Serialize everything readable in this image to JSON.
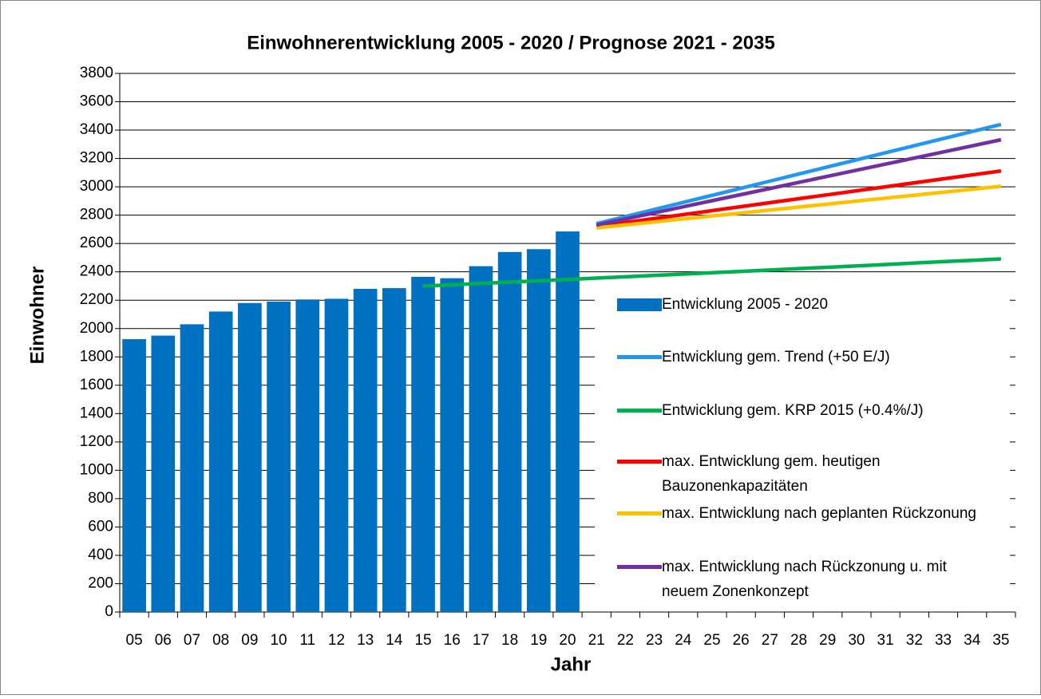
{
  "chart_data": {
    "type": "bar",
    "title": "Einwohnerentwicklung 2005 - 2020 / Prognose 2021 - 2035",
    "x_label": "Jahr",
    "y_label": "Einwohner",
    "categories": [
      "05",
      "06",
      "07",
      "08",
      "09",
      "10",
      "11",
      "12",
      "13",
      "14",
      "15",
      "16",
      "17",
      "18",
      "19",
      "20",
      "21",
      "22",
      "23",
      "24",
      "25",
      "26",
      "27",
      "28",
      "29",
      "30",
      "31",
      "32",
      "33",
      "34",
      "35"
    ],
    "ylim": [
      0,
      3800
    ],
    "yticks": [
      0,
      200,
      400,
      600,
      800,
      1000,
      1200,
      1400,
      1600,
      1800,
      2000,
      2200,
      2400,
      2600,
      2800,
      3000,
      3200,
      3400,
      3600,
      3800
    ],
    "grid": true,
    "series": [
      {
        "name": "Entwicklung 2005 - 2020",
        "type": "bar",
        "color": "#0070c0",
        "values": [
          1925,
          1950,
          2030,
          2120,
          2180,
          2190,
          2205,
          2210,
          2280,
          2285,
          2365,
          2355,
          2440,
          2540,
          2560,
          2685,
          null,
          null,
          null,
          null,
          null,
          null,
          null,
          null,
          null,
          null,
          null,
          null,
          null,
          null,
          null
        ]
      },
      {
        "name": "Entwicklung gem. Trend (+50 E/J)",
        "type": "line",
        "color": "#2196f3",
        "values": [
          null,
          null,
          null,
          null,
          null,
          null,
          null,
          null,
          null,
          null,
          null,
          null,
          null,
          null,
          null,
          null,
          2740,
          2790,
          2840,
          2890,
          2940,
          2990,
          3040,
          3090,
          3140,
          3190,
          3240,
          3290,
          3340,
          3390,
          3440
        ]
      },
      {
        "name": "Entwicklung gem. KRP 2015 (+0.4%/J)",
        "type": "line",
        "color": "#00b050",
        "values": [
          null,
          null,
          null,
          null,
          null,
          null,
          null,
          null,
          null,
          null,
          2300,
          2309,
          2318,
          2328,
          2337,
          2346,
          2356,
          2365,
          2375,
          2384,
          2394,
          2403,
          2413,
          2423,
          2432,
          2442,
          2452,
          2462,
          2472,
          2481,
          2491
        ]
      },
      {
        "name": "max. Entwicklung gem. heutigen Bauzonenkapazitäten",
        "type": "line",
        "color": "#ff0000",
        "values": [
          null,
          null,
          null,
          null,
          null,
          null,
          null,
          null,
          null,
          null,
          null,
          null,
          null,
          null,
          null,
          null,
          2720,
          2748,
          2776,
          2804,
          2832,
          2860,
          2888,
          2916,
          2944,
          2972,
          3000,
          3028,
          3056,
          3084,
          3112
        ]
      },
      {
        "name": "max. Entwicklung nach geplanten Rückzonung",
        "type": "line",
        "color": "#ffc000",
        "values": [
          null,
          null,
          null,
          null,
          null,
          null,
          null,
          null,
          null,
          null,
          null,
          null,
          null,
          null,
          null,
          null,
          2710,
          2731,
          2752,
          2773,
          2794,
          2815,
          2836,
          2857,
          2878,
          2899,
          2920,
          2941,
          2962,
          2983,
          3004
        ]
      },
      {
        "name": "max. Entwicklung nach Rückzonung u. mit neuem Zonenkonzept",
        "type": "line",
        "color": "#7030a0",
        "values": [
          null,
          null,
          null,
          null,
          null,
          null,
          null,
          null,
          null,
          null,
          null,
          null,
          null,
          null,
          null,
          null,
          2730,
          2773,
          2816,
          2859,
          2902,
          2945,
          2988,
          3031,
          3074,
          3117,
          3160,
          3203,
          3246,
          3289,
          3332
        ]
      }
    ]
  }
}
